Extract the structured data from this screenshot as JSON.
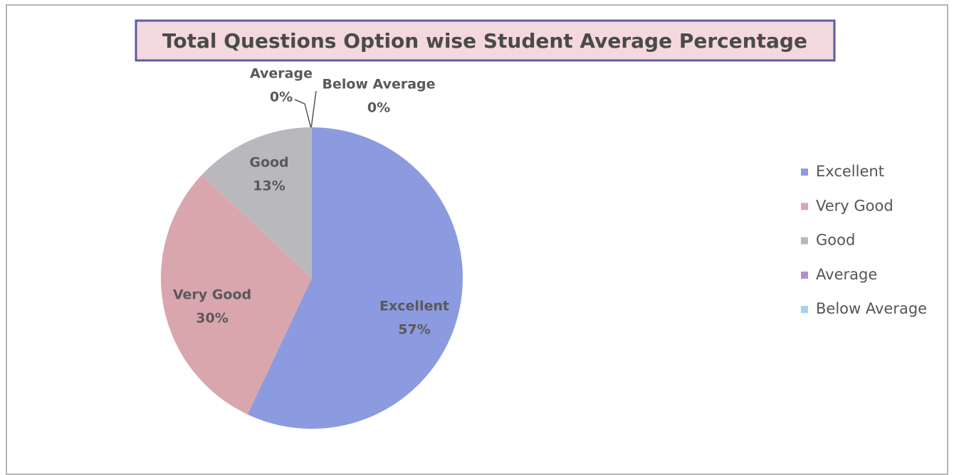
{
  "chart_data": {
    "type": "pie",
    "title": "Total Questions Option wise Student Average Percentage",
    "categories": [
      "Excellent",
      "Very Good",
      "Good",
      "Average",
      "Below Average"
    ],
    "values": [
      57,
      30,
      13,
      0,
      0
    ],
    "value_labels": [
      "57%",
      "30%",
      "13%",
      "0%",
      "0%"
    ],
    "colors": [
      "#8c9be0",
      "#d9a6ae",
      "#b9b9bd",
      "#b18fcb",
      "#a3d3ec"
    ],
    "legend": "right"
  }
}
